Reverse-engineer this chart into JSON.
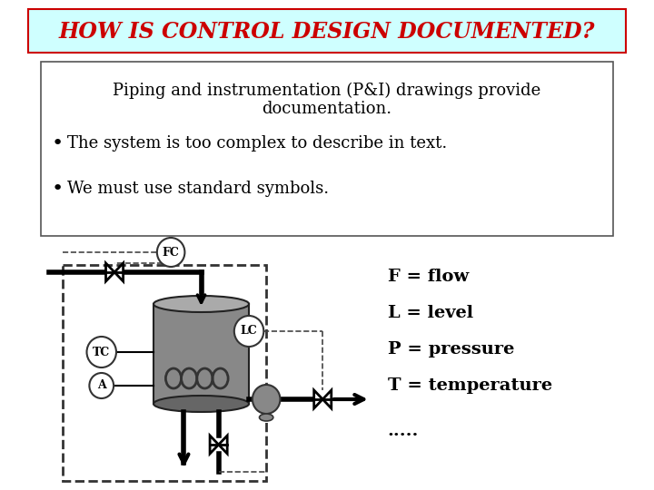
{
  "title": "HOW IS CONTROL DESIGN DOCUMENTED?",
  "title_color": "#CC0000",
  "title_bg": "#CFFFFF",
  "title_border": "#CC0000",
  "bg_color": "#FFFFFF",
  "box_text_line1": "Piping and instrumentation (P&I) drawings provide",
  "box_text_line2": "documentation.",
  "bullet1": "The system is too complex to describe in text.",
  "bullet2": "We must use standard symbols.",
  "legend": [
    "F = flow",
    "L = level",
    "P = pressure",
    "T = temperature",
    "....."
  ],
  "font_size_title": 17,
  "font_size_body": 12,
  "font_size_legend": 13,
  "tank_gray": "#888888",
  "tank_top_gray": "#AAAAAA",
  "tank_dark": "#555555",
  "pump_gray": "#888888"
}
